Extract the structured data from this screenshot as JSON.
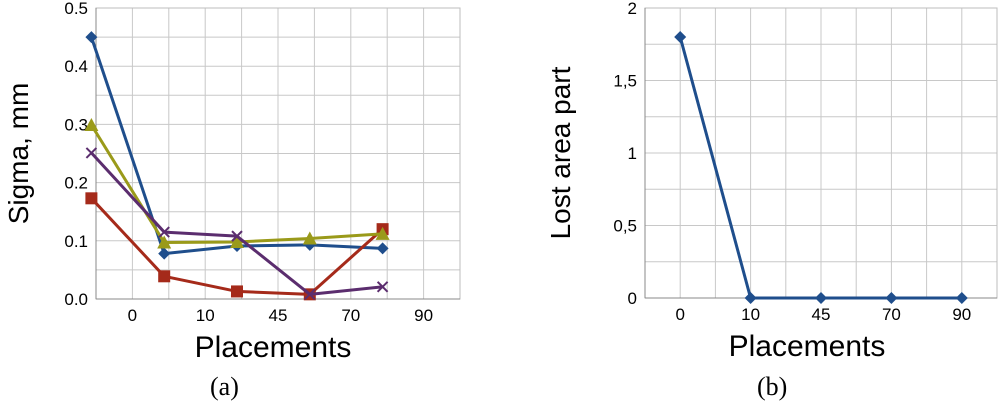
{
  "chart_data": [
    {
      "type": "line",
      "categories": [
        "0",
        "10",
        "45",
        "70",
        "90"
      ],
      "xlabel": "Placements",
      "ylabel": "Sigma, mm",
      "ylim": [
        0,
        0.5
      ],
      "yticks": [
        "0.0",
        "0.1",
        "0.2",
        "0.3",
        "0.4",
        "0.5"
      ],
      "grid": true,
      "caption": "(a)",
      "series": [
        {
          "color": "#1f4e8c",
          "marker": "diamond",
          "values": [
            0.45,
            0.078,
            0.091,
            0.093,
            0.087
          ]
        },
        {
          "color": "#a52a1a",
          "marker": "square",
          "values": [
            0.173,
            0.039,
            0.013,
            0.008,
            0.12
          ]
        },
        {
          "color": "#9a9a1a",
          "marker": "triangle",
          "values": [
            0.299,
            0.097,
            0.098,
            0.104,
            0.112
          ]
        },
        {
          "color": "#5b2d6e",
          "marker": "x",
          "values": [
            0.251,
            0.115,
            0.108,
            0.008,
            0.021
          ]
        }
      ]
    },
    {
      "type": "line",
      "categories": [
        "0",
        "10",
        "45",
        "70",
        "90"
      ],
      "xlabel": "Placements",
      "ylabel": "Lost area part",
      "ylim": [
        0,
        2
      ],
      "yticks": [
        "0",
        "0,5",
        "1",
        "1,5",
        "2"
      ],
      "grid": true,
      "caption": "(b)",
      "series": [
        {
          "color": "#1f4e8c",
          "marker": "diamond",
          "values": [
            1.8,
            0,
            0,
            0,
            0
          ]
        }
      ]
    }
  ]
}
